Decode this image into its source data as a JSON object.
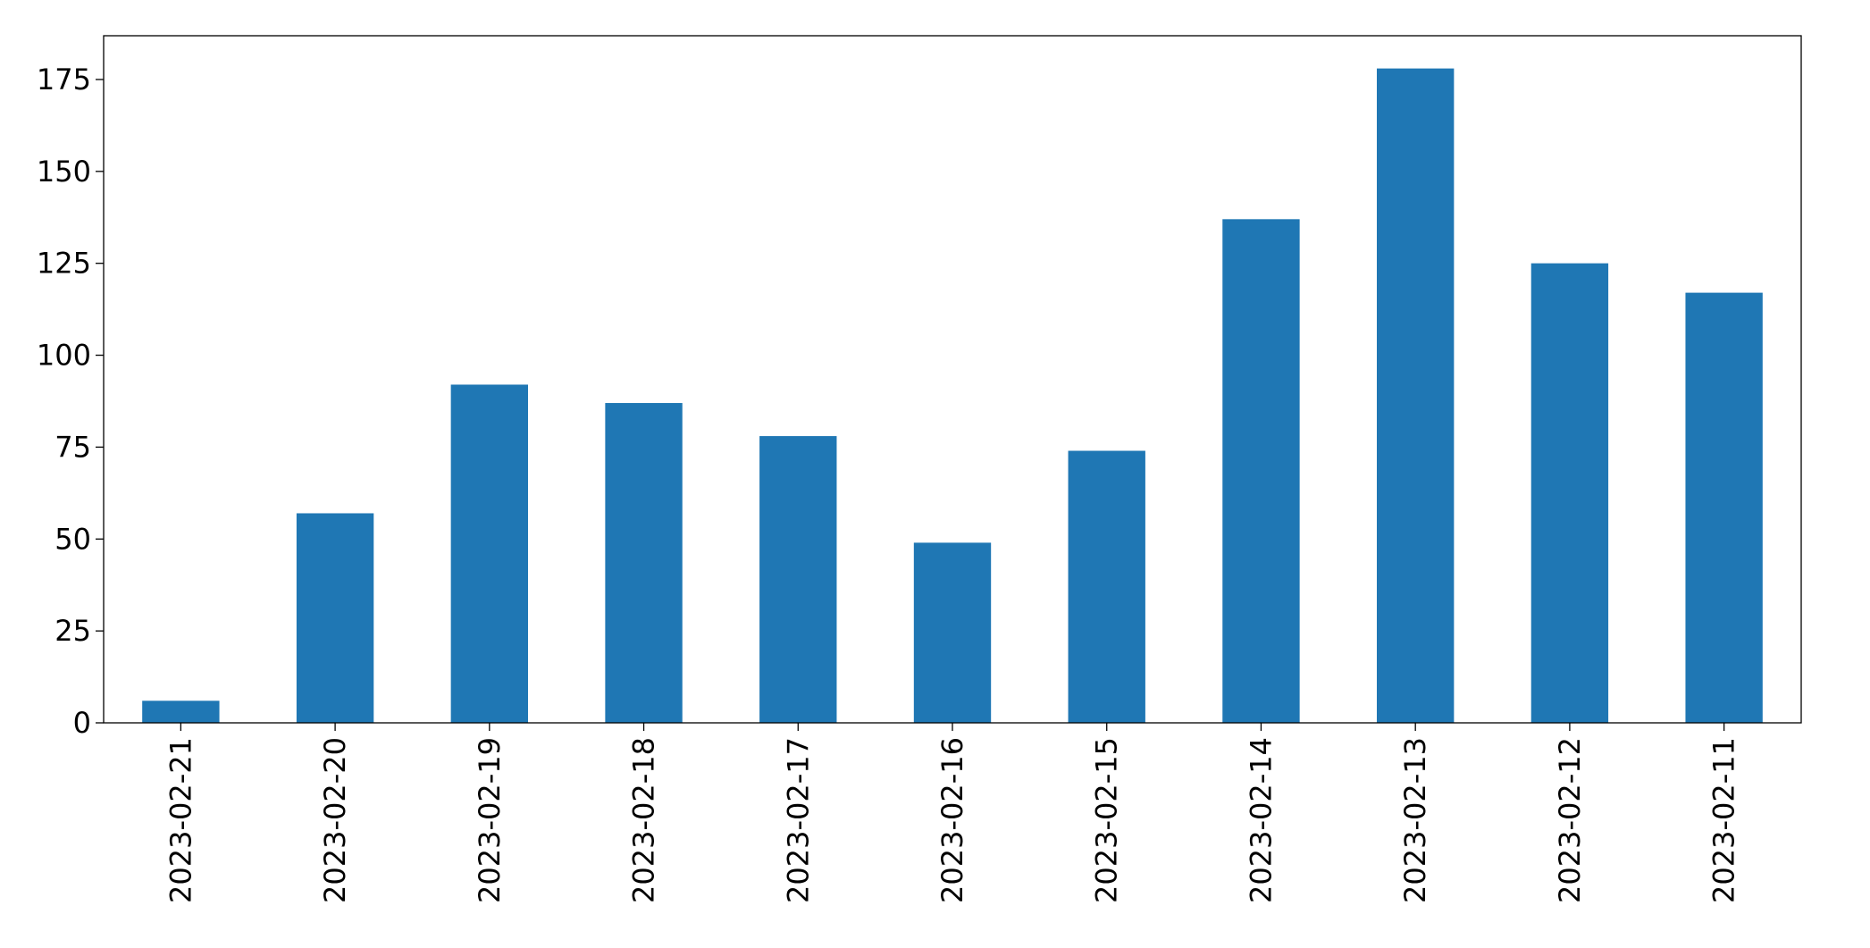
{
  "chart_data": {
    "type": "bar",
    "categories": [
      "2023-02-21",
      "2023-02-20",
      "2023-02-19",
      "2023-02-18",
      "2023-02-17",
      "2023-02-16",
      "2023-02-15",
      "2023-02-14",
      "2023-02-13",
      "2023-02-12",
      "2023-02-11"
    ],
    "values": [
      6,
      57,
      92,
      87,
      78,
      49,
      74,
      137,
      178,
      125,
      117
    ],
    "color": "#1f77b4",
    "ylim": [
      0,
      186.9
    ],
    "yticks": [
      0,
      25,
      50,
      75,
      100,
      125,
      150,
      175
    ],
    "grid": false
  }
}
